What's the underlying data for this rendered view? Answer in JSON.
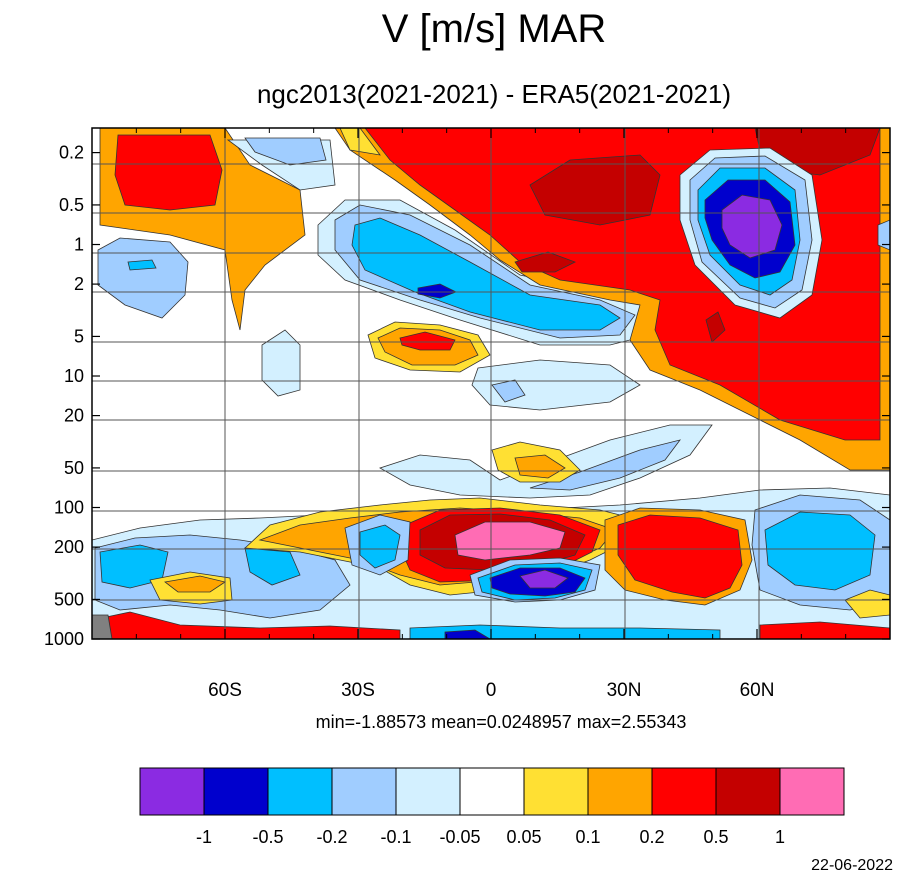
{
  "title": "V [m/s] MAR",
  "subtitle": "ngc2013(2021-2021) - ERA5(2021-2021)",
  "stats": "min=-1.88573   mean=0.0248957   max=2.55343",
  "date": "22-06-2022",
  "chart_data": {
    "type": "heatmap",
    "title": "V [m/s] MAR",
    "subtitle": "ngc2013(2021-2021) - ERA5(2021-2021)",
    "x_axis": {
      "quantity": "latitude",
      "range": [
        -90,
        90
      ],
      "ticks": [
        {
          "value": -60,
          "label": "60S"
        },
        {
          "value": -30,
          "label": "30S"
        },
        {
          "value": 0,
          "label": "0"
        },
        {
          "value": 30,
          "label": "30N"
        },
        {
          "value": 60,
          "label": "60N"
        }
      ]
    },
    "y_axis": {
      "quantity": "pressure",
      "scale": "log",
      "reversed": true,
      "range": [
        1000,
        0.1
      ],
      "ticks": [
        0.2,
        0.5,
        1,
        2,
        5,
        10,
        20,
        50,
        100,
        200,
        500,
        1000
      ]
    },
    "grid": true,
    "colorbar": {
      "position": "bottom",
      "levels": [
        "-1",
        "-0.5",
        "-0.2",
        "-0.1",
        "-0.05",
        "0.05",
        "0.1",
        "0.2",
        "0.5",
        "1"
      ],
      "colors": [
        "#8b2be2",
        "#0000cd",
        "#00bfff",
        "#a0cdff",
        "#d3f0ff",
        "#ffffff",
        "#ffe033",
        "#ffa500",
        "#ff0000",
        "#c40000",
        "#ff6cb4"
      ]
    },
    "min": -1.88573,
    "mean": 0.0248957,
    "max": 2.55343
  }
}
